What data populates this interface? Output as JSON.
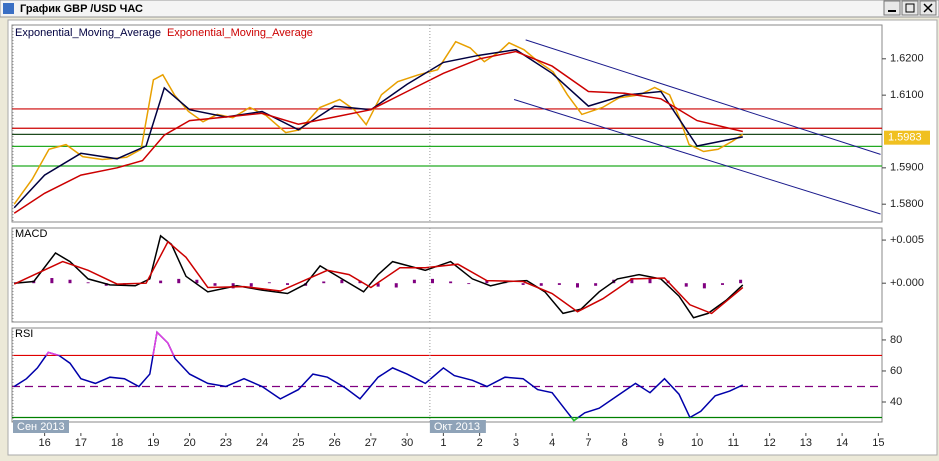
{
  "window": {
    "title": "График GBP /USD ЧАС"
  },
  "chart_data": [
    {
      "type": "line",
      "xlim": [
        -0.9,
        23.1
      ],
      "ylim": [
        1.5751,
        1.6293
      ],
      "yticks": [
        {
          "value": 1.58,
          "label": "1.5800"
        },
        {
          "value": 1.59,
          "label": "1.5900"
        },
        {
          "value": 1.61,
          "label": "1.6100"
        },
        {
          "value": 1.62,
          "label": "1.6200"
        }
      ],
      "last_value": {
        "value": 1.5983,
        "label": "1.5983",
        "color": "#f0c020"
      },
      "levels": [
        {
          "value": 1.6062,
          "color": "#cc0000"
        },
        {
          "value": 1.6009,
          "color": "#cc0000"
        },
        {
          "value": 1.5992,
          "color": "#1e4a1e"
        },
        {
          "value": 1.5959,
          "color": "#22aa22"
        },
        {
          "value": 1.5905,
          "color": "#22aa22"
        }
      ],
      "trend_lines": [
        {
          "x": [
            13.27,
            23.06
          ],
          "values": [
            1.6252,
            1.5937
          ],
          "color": "#1a1a8c"
        },
        {
          "x": [
            12.95,
            23.06
          ],
          "values": [
            1.6088,
            1.5773
          ],
          "color": "#1a1a8c"
        }
      ],
      "series": [
        {
          "color": "#e8a000",
          "x": [
            -0.84,
            -0.34,
            0.12,
            0.59,
            1.05,
            1.59,
            2.26,
            2.66,
            3.0,
            3.26,
            3.58,
            3.97,
            4.37,
            4.76,
            5.19,
            5.66,
            6.11,
            6.65,
            7.05,
            7.59,
            8.14,
            8.54,
            8.87,
            9.29,
            9.74,
            10.31,
            10.84,
            11.34,
            11.74,
            12.13,
            12.54,
            12.81,
            13.22,
            13.62,
            14.03,
            14.42,
            14.82,
            15.39,
            15.85,
            16.42,
            16.83,
            17.24,
            17.51,
            17.78,
            18.18,
            18.58,
            18.97,
            19.26
          ],
          "values": [
            1.58,
            1.5869,
            1.5951,
            1.5964,
            1.5931,
            1.5923,
            1.5929,
            1.5951,
            1.6142,
            1.6156,
            1.6101,
            1.6055,
            1.6027,
            1.6047,
            1.6038,
            1.6066,
            1.6044,
            1.5997,
            1.6005,
            1.6066,
            1.6088,
            1.606,
            1.6019,
            1.6101,
            1.6137,
            1.6156,
            1.617,
            1.6247,
            1.623,
            1.6192,
            1.6219,
            1.6244,
            1.6225,
            1.6192,
            1.6164,
            1.6101,
            1.6047,
            1.6066,
            1.6093,
            1.6101,
            1.6121,
            1.6101,
            1.6038,
            1.5964,
            1.5945,
            1.5951,
            1.5973,
            1.5992
          ]
        },
        {
          "name": "Exponential_Moving_Average",
          "color": "#000040",
          "x": [
            -0.84,
            0,
            1,
            2,
            2.8,
            3.3,
            4,
            5,
            6,
            7,
            8,
            9,
            10,
            11,
            12,
            13,
            14,
            15,
            16,
            17,
            18,
            19.26
          ],
          "values": [
            1.579,
            1.588,
            1.594,
            1.5925,
            1.596,
            1.612,
            1.606,
            1.604,
            1.6055,
            1.6005,
            1.607,
            1.606,
            1.613,
            1.619,
            1.621,
            1.6225,
            1.616,
            1.607,
            1.61,
            1.611,
            1.596,
            1.5985
          ]
        },
        {
          "name": "Exponential_Moving_Average",
          "color": "#cc0000",
          "x": [
            -0.84,
            0,
            1,
            2,
            2.7,
            3.3,
            4,
            5,
            6,
            7,
            8,
            9,
            10,
            11,
            12,
            13,
            14,
            15,
            16,
            17,
            18,
            19.26
          ],
          "values": [
            1.5775,
            1.583,
            1.588,
            1.59,
            1.592,
            1.599,
            1.603,
            1.604,
            1.605,
            1.602,
            1.604,
            1.606,
            1.611,
            1.616,
            1.62,
            1.622,
            1.618,
            1.611,
            1.6105,
            1.609,
            1.603,
            1.6
          ]
        }
      ]
    },
    {
      "type": "line",
      "title": "MACD",
      "xlim": [
        -0.9,
        23.1
      ],
      "ylim": [
        -0.0045,
        0.0064
      ],
      "yticks": [
        {
          "value": 0.005,
          "label": "+0.005"
        },
        {
          "value": 0,
          "label": "+0.000"
        }
      ],
      "series": [
        {
          "type": "bar",
          "color": "#800080",
          "x": [
            -0.8,
            -0.3,
            0.2,
            0.7,
            1.2,
            1.7,
            2.2,
            2.7,
            3.2,
            3.7,
            4.2,
            4.7,
            5.2,
            5.7,
            6.2,
            6.7,
            7.2,
            7.7,
            8.2,
            8.7,
            9.2,
            9.7,
            10.2,
            10.7,
            11.2,
            11.7,
            12.2,
            12.7,
            13.2,
            13.7,
            14.2,
            14.7,
            15.2,
            15.7,
            16.2,
            16.7,
            17.2,
            17.7,
            18.2,
            18.7,
            19.2
          ],
          "values": [
            0.0001,
            0.0003,
            0.0006,
            0.0004,
            0.0001,
            -0.0003,
            -0.0002,
            0.0001,
            0.0003,
            0.0005,
            0.0004,
            -0.0003,
            -0.0006,
            -0.0004,
            0.0001,
            -0.0002,
            -0.0003,
            0.0002,
            0.0004,
            0.0003,
            -0.0004,
            -0.0005,
            0.0004,
            0.0005,
            0.0002,
            -0.0001,
            0.0003,
            0.0002,
            -0.0002,
            -0.0003,
            -0.0002,
            -0.0005,
            -0.0003,
            0.0004,
            0.0006,
            0.0005,
            0.0003,
            -0.0004,
            -0.0006,
            -0.0002,
            0.0004
          ]
        },
        {
          "color": "#000000",
          "x": [
            -0.84,
            -0.3,
            0.3,
            0.7,
            1.2,
            1.8,
            2.5,
            2.9,
            3.2,
            3.5,
            3.9,
            4.5,
            5.3,
            6.0,
            6.7,
            7.2,
            7.6,
            8.2,
            8.8,
            9.2,
            9.6,
            10.5,
            11.2,
            11.8,
            12.3,
            12.8,
            13.3,
            13.8,
            14.3,
            14.8,
            15.3,
            15.8,
            16.4,
            17.0,
            17.5,
            17.9,
            18.3,
            18.8,
            19.26
          ],
          "values": [
            0,
            0.0002,
            0.0035,
            0.0025,
            0.0005,
            -0.0002,
            -0.0003,
            0.0005,
            0.0055,
            0.0045,
            0.0008,
            -0.001,
            -0.0003,
            -0.0008,
            -0.0012,
            -0.0001,
            0.002,
            0.0005,
            -0.001,
            0.001,
            0.0025,
            0.0015,
            0.0025,
            0.0005,
            -0.0003,
            0.0002,
            0.0003,
            -0.001,
            -0.0035,
            -0.003,
            -0.001,
            0.0005,
            0.001,
            0.0005,
            -0.0015,
            -0.004,
            -0.0035,
            -0.002,
            -0.0002
          ]
        },
        {
          "color": "#cc0000",
          "x": [
            -0.84,
            0.5,
            1.2,
            2,
            2.8,
            3.4,
            3.9,
            4.5,
            5.5,
            6.5,
            7.8,
            8.4,
            9.0,
            9.8,
            10.5,
            11.4,
            12.2,
            13.2,
            14,
            14.7,
            15.4,
            16.2,
            17.1,
            17.8,
            18.4,
            19.26
          ],
          "values": [
            -0.0001,
            0.0025,
            0.0015,
            -0.0001,
            0,
            0.0048,
            0.003,
            -0.0005,
            -0.0004,
            -0.0009,
            0.0015,
            0.001,
            -0.0005,
            0.0018,
            0.0018,
            0.0022,
            0.0003,
            0.0002,
            -0.0012,
            -0.0033,
            -0.0018,
            0.0005,
            0.0006,
            -0.0025,
            -0.0035,
            -0.0005
          ]
        }
      ]
    },
    {
      "type": "line",
      "title": "RSI",
      "xlim": [
        -0.9,
        23.1
      ],
      "ylim": [
        27.1,
        87.7
      ],
      "yticks": [
        40,
        60,
        80
      ],
      "levels": [
        {
          "value": 70,
          "color": "#e00000"
        },
        {
          "value": 50,
          "color": "#800080",
          "style": "dashed"
        },
        {
          "value": 30,
          "color": "#008000"
        }
      ],
      "overbought": {
        "value": 70,
        "color": "#e040e0"
      },
      "oversold": {
        "value": 30,
        "color": "#22cc22"
      },
      "categories": [
        "16",
        "17",
        "18",
        "19",
        "20",
        "23",
        "24",
        "25",
        "26",
        "27",
        "30",
        "1",
        "2",
        "3",
        "4",
        "7",
        "8",
        "9",
        "10",
        "11",
        "12",
        "13",
        "14",
        "15"
      ],
      "month_labels": [
        {
          "value": -0.9,
          "label": "Сен 2013"
        },
        {
          "value": 10.6,
          "label": "Окт 2013"
        }
      ],
      "series": [
        {
          "color": "#0000aa",
          "x": [
            -0.84,
            -0.5,
            -0.2,
            0.1,
            0.4,
            0.7,
            1.0,
            1.4,
            1.8,
            2.2,
            2.6,
            2.9,
            3.1,
            3.4,
            3.6,
            4.0,
            4.5,
            5.0,
            5.5,
            6.0,
            6.5,
            7.0,
            7.4,
            7.8,
            8.3,
            8.7,
            9.2,
            9.6,
            10.0,
            10.5,
            11.0,
            11.3,
            11.8,
            12.2,
            12.7,
            13.2,
            13.6,
            14.0,
            14.4,
            14.6,
            14.9,
            15.3,
            15.8,
            16.3,
            16.7,
            17.1,
            17.5,
            17.8,
            18.1,
            18.5,
            18.9,
            19.26
          ],
          "values": [
            50,
            55,
            62,
            72,
            70,
            65,
            55,
            52,
            56,
            55,
            50,
            58,
            85,
            78,
            68,
            58,
            52,
            50,
            55,
            50,
            42,
            48,
            58,
            56,
            49,
            42,
            56,
            62,
            58,
            52,
            62,
            57,
            54,
            50,
            56,
            55,
            48,
            46,
            34,
            28,
            33,
            36,
            44,
            52,
            46,
            55,
            45,
            30,
            34,
            44,
            47,
            51
          ]
        }
      ]
    }
  ]
}
